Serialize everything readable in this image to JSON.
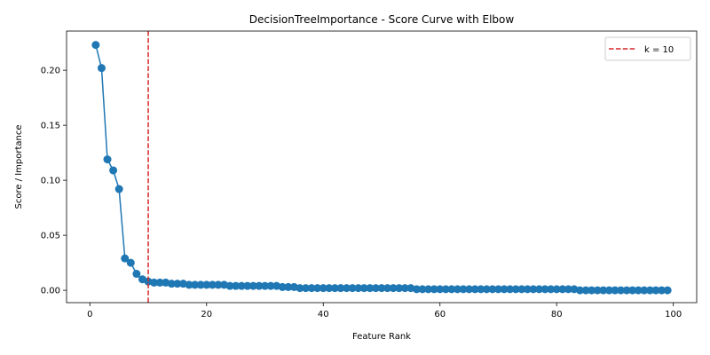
{
  "chart_data": {
    "type": "line",
    "title": "DecisionTreeImportance - Score Curve with Elbow",
    "xlabel": "Feature Rank",
    "ylabel": "Score / Importance",
    "xlim": [
      -4,
      104
    ],
    "ylim": [
      -0.0112,
      0.2356
    ],
    "xticks": [
      {
        "value": 0,
        "label": "0"
      },
      {
        "value": 20,
        "label": "20"
      },
      {
        "value": 40,
        "label": "40"
      },
      {
        "value": 60,
        "label": "60"
      },
      {
        "value": 80,
        "label": "80"
      },
      {
        "value": 100,
        "label": "100"
      }
    ],
    "yticks": [
      {
        "value": 0.0,
        "label": "0.00"
      },
      {
        "value": 0.05,
        "label": "0.05"
      },
      {
        "value": 0.1,
        "label": "0.10"
      },
      {
        "value": 0.15,
        "label": "0.15"
      },
      {
        "value": 0.2,
        "label": "0.20"
      }
    ],
    "grid": false,
    "legend_position": "top-right",
    "series": [
      {
        "name": "",
        "color": "#1f77b4",
        "marker": "circle",
        "x": [
          1,
          2,
          3,
          4,
          5,
          6,
          7,
          8,
          9,
          10,
          11,
          12,
          13,
          14,
          15,
          16,
          17,
          18,
          19,
          20,
          21,
          22,
          23,
          24,
          25,
          26,
          27,
          28,
          29,
          30,
          31,
          32,
          33,
          34,
          35,
          36,
          37,
          38,
          39,
          40,
          41,
          42,
          43,
          44,
          45,
          46,
          47,
          48,
          49,
          50,
          51,
          52,
          53,
          54,
          55,
          56,
          57,
          58,
          59,
          60,
          61,
          62,
          63,
          64,
          65,
          66,
          67,
          68,
          69,
          70,
          71,
          72,
          73,
          74,
          75,
          76,
          77,
          78,
          79,
          80,
          81,
          82,
          83,
          84,
          85,
          86,
          87,
          88,
          89,
          90,
          91,
          92,
          93,
          94,
          95,
          96,
          97,
          98,
          99
        ],
        "values": [
          0.223,
          0.202,
          0.119,
          0.109,
          0.092,
          0.029,
          0.025,
          0.015,
          0.01,
          0.008,
          0.007,
          0.007,
          0.007,
          0.006,
          0.006,
          0.006,
          0.005,
          0.005,
          0.005,
          0.005,
          0.005,
          0.005,
          0.005,
          0.004,
          0.004,
          0.004,
          0.004,
          0.004,
          0.004,
          0.004,
          0.004,
          0.004,
          0.003,
          0.003,
          0.003,
          0.002,
          0.002,
          0.002,
          0.002,
          0.002,
          0.002,
          0.002,
          0.002,
          0.002,
          0.002,
          0.002,
          0.002,
          0.002,
          0.002,
          0.002,
          0.002,
          0.002,
          0.002,
          0.002,
          0.002,
          0.001,
          0.001,
          0.001,
          0.001,
          0.001,
          0.001,
          0.001,
          0.001,
          0.001,
          0.001,
          0.001,
          0.001,
          0.001,
          0.001,
          0.001,
          0.001,
          0.001,
          0.001,
          0.001,
          0.001,
          0.001,
          0.001,
          0.001,
          0.001,
          0.001,
          0.001,
          0.001,
          0.001,
          0.0,
          0.0,
          0.0,
          0.0,
          0.0,
          0.0,
          0.0,
          0.0,
          0.0,
          0.0,
          0.0,
          0.0,
          0.0,
          0.0,
          0.0,
          0.0
        ]
      }
    ],
    "reference_lines": [
      {
        "orientation": "vertical",
        "x": 10,
        "color": "#d62728",
        "style": "dashed",
        "legend_label": "k = 10"
      }
    ]
  }
}
